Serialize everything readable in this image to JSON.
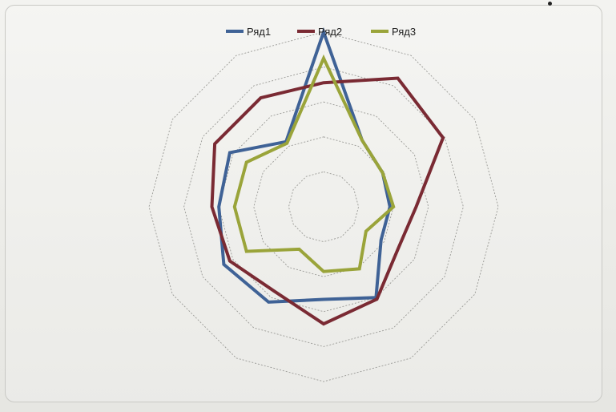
{
  "chart_data": {
    "type": "radar",
    "title": "",
    "categories": [
      "",
      "",
      "",
      "",
      "",
      "",
      "",
      "",
      "",
      "",
      "",
      ""
    ],
    "rmax": 100,
    "rings": 5,
    "legend_position": "top",
    "series": [
      {
        "name": "Ряд1",
        "color": "#3f6296",
        "values": [
          100,
          44,
          39,
          38,
          38,
          60,
          53,
          63,
          66,
          60,
          62,
          43
        ]
      },
      {
        "name": "Ряд2",
        "color": "#7a2a33",
        "values": [
          71,
          85,
          79,
          53,
          49,
          61,
          67,
          56,
          62,
          64,
          72,
          72
        ]
      },
      {
        "name": "Ряд3",
        "color": "#9aa43a",
        "values": [
          85,
          44,
          39,
          40,
          28,
          41,
          37,
          28,
          51,
          51,
          51,
          42
        ]
      }
    ]
  }
}
